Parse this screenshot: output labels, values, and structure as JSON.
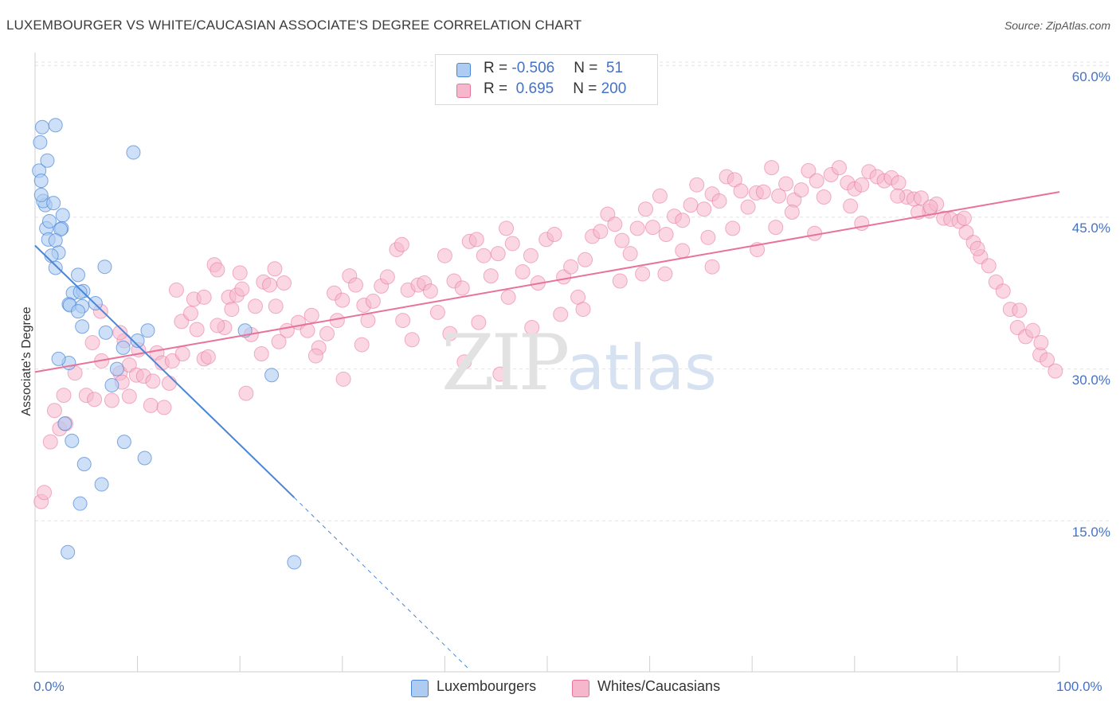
{
  "title": "LUXEMBOURGER VS WHITE/CAUCASIAN ASSOCIATE'S DEGREE CORRELATION CHART",
  "source": "Source: ZipAtlas.com",
  "watermark": {
    "zip": "ZIP",
    "atlas": "atlas"
  },
  "legend": {
    "rows": [
      {
        "r_label": "R = ",
        "r_value": "-0.506",
        "n_label": "N = ",
        "n_value": " 51",
        "color": "#aecbf2"
      },
      {
        "r_label": "R = ",
        "r_value": " 0.695",
        "n_label": "N = ",
        "n_value": "200",
        "color": "#f6b7cc"
      }
    ]
  },
  "bottom_legend": [
    {
      "label": "Luxembourgers",
      "color": "#aecbf2"
    },
    {
      "label": "Whites/Caucasians",
      "color": "#f6b7cc"
    }
  ],
  "chart_data": {
    "type": "scatter",
    "title": "LUXEMBOURGER VS WHITE/CAUCASIAN ASSOCIATE'S DEGREE CORRELATION CHART",
    "xlabel": "",
    "ylabel": "Associate's Degree",
    "xlim": [
      0,
      100
    ],
    "ylim": [
      0,
      62
    ],
    "x_tick_labels": [
      "0.0%",
      "100.0%"
    ],
    "y_ticks": [
      15,
      30,
      45,
      60
    ],
    "y_tick_labels": [
      "15.0%",
      "30.0%",
      "45.0%",
      "60.0%"
    ],
    "grid": "horizontal dashed",
    "legend_position": "top-center",
    "series": [
      {
        "name": "Luxembourgers",
        "color": "#4a86d8",
        "fill": "#aecbf2",
        "r": -0.506,
        "n": 51,
        "trend": {
          "x": [
            0,
            25.3
          ],
          "y": [
            42.2,
            17.3
          ],
          "dashed_to": [
            42.5,
            0.2
          ]
        },
        "points": [
          [
            0.4,
            49.6
          ],
          [
            0.7,
            53.9
          ],
          [
            0.5,
            52.4
          ],
          [
            1.2,
            50.6
          ],
          [
            2.0,
            54.1
          ],
          [
            0.6,
            48.6
          ],
          [
            1.0,
            46.2
          ],
          [
            0.8,
            46.6
          ],
          [
            1.8,
            46.4
          ],
          [
            2.7,
            45.2
          ],
          [
            1.1,
            43.9
          ],
          [
            2.6,
            43.9
          ],
          [
            2.5,
            43.8
          ],
          [
            1.3,
            42.8
          ],
          [
            2.0,
            42.7
          ],
          [
            2.3,
            41.5
          ],
          [
            1.6,
            41.2
          ],
          [
            2.0,
            40.0
          ],
          [
            4.2,
            39.3
          ],
          [
            6.8,
            40.1
          ],
          [
            3.7,
            37.5
          ],
          [
            4.7,
            37.7
          ],
          [
            4.4,
            37.6
          ],
          [
            3.3,
            36.4
          ],
          [
            3.4,
            36.3
          ],
          [
            5.9,
            36.5
          ],
          [
            4.6,
            36.2
          ],
          [
            4.2,
            35.7
          ],
          [
            4.6,
            34.2
          ],
          [
            6.9,
            33.6
          ],
          [
            11.0,
            33.8
          ],
          [
            10.0,
            32.8
          ],
          [
            8.6,
            32.1
          ],
          [
            3.3,
            30.6
          ],
          [
            2.3,
            31.0
          ],
          [
            8.0,
            30.0
          ],
          [
            7.5,
            28.4
          ],
          [
            20.5,
            33.8
          ],
          [
            23.1,
            29.4
          ],
          [
            2.9,
            24.6
          ],
          [
            3.6,
            22.9
          ],
          [
            8.7,
            22.8
          ],
          [
            10.7,
            21.2
          ],
          [
            4.8,
            20.6
          ],
          [
            6.5,
            18.6
          ],
          [
            4.4,
            16.7
          ],
          [
            3.2,
            11.9
          ],
          [
            25.3,
            10.9
          ],
          [
            9.6,
            51.4
          ],
          [
            0.6,
            47.2
          ],
          [
            1.4,
            44.6
          ]
        ]
      },
      {
        "name": "Whites/Caucasians",
        "color": "#e8739a",
        "fill": "#f6b7cc",
        "r": 0.695,
        "n": 200,
        "trend": {
          "x": [
            0,
            100
          ],
          "y": [
            29.7,
            47.5
          ]
        },
        "points": [
          [
            0.6,
            16.9
          ],
          [
            0.9,
            17.8
          ],
          [
            1.5,
            22.8
          ],
          [
            1.9,
            25.9
          ],
          [
            2.4,
            24.1
          ],
          [
            2.8,
            27.4
          ],
          [
            3.0,
            24.6
          ],
          [
            3.9,
            29.6
          ],
          [
            5.0,
            27.4
          ],
          [
            5.6,
            32.6
          ],
          [
            5.8,
            27.0
          ],
          [
            6.5,
            30.8
          ],
          [
            6.4,
            35.7
          ],
          [
            7.5,
            26.9
          ],
          [
            8.3,
            29.6
          ],
          [
            8.5,
            28.7
          ],
          [
            8.7,
            32.8
          ],
          [
            8.3,
            33.6
          ],
          [
            9.2,
            30.4
          ],
          [
            9.2,
            27.3
          ],
          [
            9.9,
            29.4
          ],
          [
            10.6,
            29.3
          ],
          [
            10.1,
            31.9
          ],
          [
            11.3,
            26.4
          ],
          [
            11.5,
            28.8
          ],
          [
            11.9,
            31.6
          ],
          [
            12.4,
            30.6
          ],
          [
            13.4,
            30.8
          ],
          [
            12.6,
            26.2
          ],
          [
            13.1,
            28.6
          ],
          [
            13.8,
            37.8
          ],
          [
            14.4,
            31.5
          ],
          [
            14.3,
            34.7
          ],
          [
            15.2,
            35.5
          ],
          [
            15.5,
            36.9
          ],
          [
            16.5,
            37.1
          ],
          [
            17.5,
            40.3
          ],
          [
            17.8,
            39.8
          ],
          [
            16.5,
            31.0
          ],
          [
            16.9,
            31.2
          ],
          [
            18.5,
            34.1
          ],
          [
            18.9,
            37.1
          ],
          [
            19.2,
            35.9
          ],
          [
            19.7,
            37.3
          ],
          [
            20.0,
            39.5
          ],
          [
            20.2,
            37.9
          ],
          [
            21.1,
            33.4
          ],
          [
            21.5,
            36.2
          ],
          [
            22.3,
            38.6
          ],
          [
            22.9,
            38.3
          ],
          [
            23.4,
            39.9
          ],
          [
            23.5,
            36.2
          ],
          [
            24.3,
            38.5
          ],
          [
            24.6,
            33.8
          ],
          [
            25.7,
            34.6
          ],
          [
            26.6,
            33.8
          ],
          [
            27.0,
            35.3
          ],
          [
            27.7,
            32.1
          ],
          [
            28.5,
            33.5
          ],
          [
            29.2,
            37.5
          ],
          [
            29.5,
            34.8
          ],
          [
            30.0,
            36.8
          ],
          [
            30.7,
            39.2
          ],
          [
            31.3,
            38.3
          ],
          [
            32.1,
            36.3
          ],
          [
            32.5,
            34.8
          ],
          [
            33.0,
            36.7
          ],
          [
            33.8,
            38.2
          ],
          [
            34.4,
            39.1
          ],
          [
            35.3,
            41.8
          ],
          [
            35.8,
            42.3
          ],
          [
            36.4,
            37.8
          ],
          [
            37.4,
            38.3
          ],
          [
            38.0,
            38.5
          ],
          [
            38.6,
            37.7
          ],
          [
            39.3,
            35.6
          ],
          [
            40.0,
            41.2
          ],
          [
            40.9,
            38.7
          ],
          [
            41.7,
            38.0
          ],
          [
            42.4,
            42.6
          ],
          [
            43.1,
            42.8
          ],
          [
            43.8,
            41.2
          ],
          [
            44.5,
            39.2
          ],
          [
            45.2,
            41.4
          ],
          [
            46.0,
            43.9
          ],
          [
            46.6,
            42.4
          ],
          [
            47.6,
            39.6
          ],
          [
            48.4,
            41.2
          ],
          [
            49.1,
            38.5
          ],
          [
            49.9,
            42.8
          ],
          [
            50.7,
            43.3
          ],
          [
            51.6,
            39.1
          ],
          [
            52.3,
            40.1
          ],
          [
            53.0,
            37.1
          ],
          [
            53.7,
            40.8
          ],
          [
            54.4,
            43.1
          ],
          [
            55.2,
            43.6
          ],
          [
            55.9,
            45.3
          ],
          [
            56.6,
            44.3
          ],
          [
            57.3,
            42.7
          ],
          [
            58.1,
            41.4
          ],
          [
            58.8,
            43.9
          ],
          [
            59.6,
            45.8
          ],
          [
            60.3,
            44.0
          ],
          [
            61.0,
            47.1
          ],
          [
            61.6,
            43.3
          ],
          [
            62.4,
            45.1
          ],
          [
            63.2,
            44.7
          ],
          [
            64.0,
            46.2
          ],
          [
            64.6,
            48.2
          ],
          [
            65.3,
            45.8
          ],
          [
            66.1,
            47.3
          ],
          [
            66.8,
            46.6
          ],
          [
            67.5,
            49.0
          ],
          [
            68.3,
            48.7
          ],
          [
            68.9,
            47.6
          ],
          [
            69.6,
            46.0
          ],
          [
            70.4,
            47.4
          ],
          [
            71.1,
            47.5
          ],
          [
            71.9,
            49.9
          ],
          [
            72.6,
            47.1
          ],
          [
            73.3,
            48.3
          ],
          [
            74.1,
            46.7
          ],
          [
            74.8,
            47.7
          ],
          [
            75.5,
            49.6
          ],
          [
            76.3,
            48.6
          ],
          [
            77.0,
            47.0
          ],
          [
            77.7,
            49.2
          ],
          [
            78.5,
            49.9
          ],
          [
            79.3,
            48.4
          ],
          [
            80.0,
            47.8
          ],
          [
            80.7,
            48.2
          ],
          [
            81.4,
            49.5
          ],
          [
            82.2,
            49.0
          ],
          [
            82.9,
            48.6
          ],
          [
            83.6,
            48.9
          ],
          [
            84.3,
            48.4
          ],
          [
            85.1,
            47.0
          ],
          [
            85.8,
            46.8
          ],
          [
            86.5,
            46.9
          ],
          [
            87.3,
            45.6
          ],
          [
            88.0,
            46.3
          ],
          [
            88.7,
            44.9
          ],
          [
            89.4,
            44.8
          ],
          [
            90.2,
            44.6
          ],
          [
            90.9,
            43.5
          ],
          [
            91.6,
            42.5
          ],
          [
            92.3,
            41.1
          ],
          [
            93.1,
            40.2
          ],
          [
            93.8,
            38.6
          ],
          [
            94.5,
            37.7
          ],
          [
            95.2,
            35.9
          ],
          [
            95.9,
            34.1
          ],
          [
            96.7,
            33.2
          ],
          [
            97.4,
            33.8
          ],
          [
            98.1,
            31.4
          ],
          [
            98.8,
            30.9
          ],
          [
            99.6,
            29.8
          ],
          [
            17.8,
            34.3
          ],
          [
            23.8,
            32.7
          ],
          [
            35.9,
            34.8
          ],
          [
            43.3,
            34.6
          ],
          [
            48.5,
            34.1
          ],
          [
            53.5,
            35.9
          ],
          [
            61.5,
            39.4
          ],
          [
            66.1,
            40.1
          ],
          [
            70.5,
            41.8
          ],
          [
            76.1,
            43.4
          ],
          [
            80.7,
            44.4
          ],
          [
            86.2,
            45.5
          ],
          [
            90.7,
            44.9
          ],
          [
            15.8,
            33.9
          ],
          [
            22.1,
            31.5
          ],
          [
            27.4,
            31.3
          ],
          [
            31.9,
            32.4
          ],
          [
            36.8,
            32.9
          ],
          [
            40.5,
            33.5
          ],
          [
            46.2,
            37.1
          ],
          [
            51.3,
            35.4
          ],
          [
            57.1,
            38.7
          ],
          [
            63.2,
            41.7
          ],
          [
            68.1,
            43.9
          ],
          [
            73.9,
            45.5
          ],
          [
            79.6,
            46.1
          ],
          [
            84.2,
            47.1
          ],
          [
            87.4,
            46.0
          ],
          [
            92.0,
            41.9
          ],
          [
            96.1,
            35.8
          ],
          [
            98.2,
            32.6
          ],
          [
            20.6,
            27.6
          ],
          [
            30.1,
            29.0
          ],
          [
            41.9,
            30.7
          ],
          [
            45.4,
            29.5
          ],
          [
            59.3,
            39.4
          ],
          [
            65.7,
            43.0
          ],
          [
            72.3,
            44.0
          ]
        ]
      }
    ]
  }
}
